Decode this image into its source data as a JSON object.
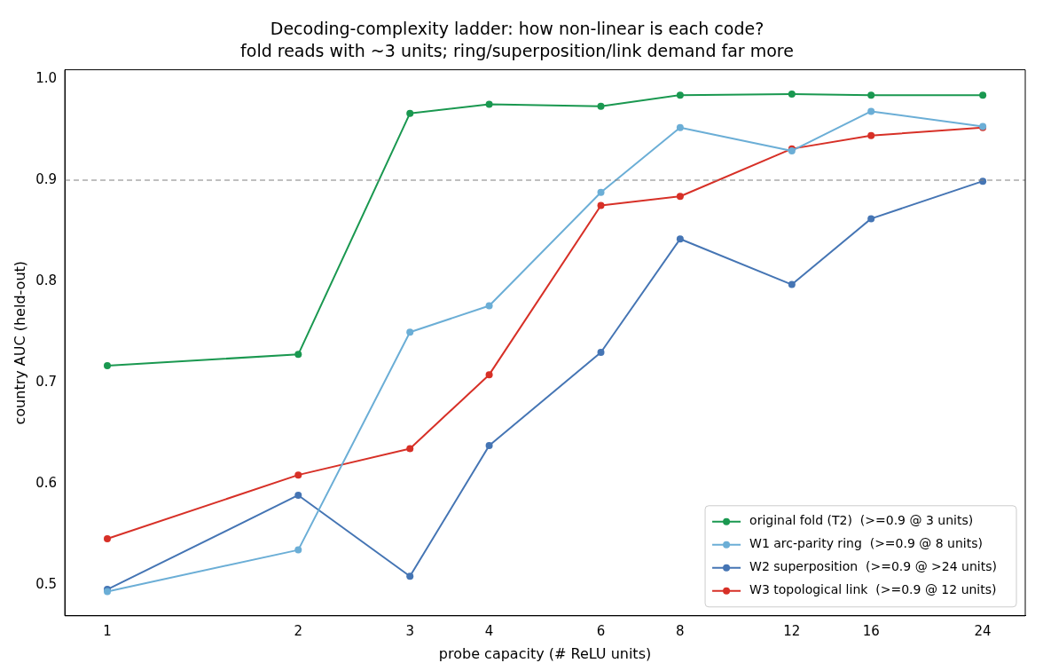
{
  "chart_data": {
    "type": "line",
    "title": "Decoding-complexity ladder: how non-linear is each code?",
    "subtitle": "fold reads with ~3 units; ring/superposition/link demand far more",
    "xlabel": "probe capacity (# ReLU units)",
    "ylabel": "country AUC (held-out)",
    "x": [
      1,
      2,
      3,
      4,
      6,
      8,
      12,
      16,
      24
    ],
    "series": [
      {
        "name": "original fold (T2)  (>=0.9 @ 3 units)",
        "color": "#1a9850",
        "values": [
          0.717,
          0.728,
          0.966,
          0.975,
          0.973,
          0.984,
          0.985,
          0.984,
          0.984
        ]
      },
      {
        "name": "W1 arc-parity ring  (>=0.9 @ 8 units)",
        "color": "#6baed6",
        "values": [
          0.494,
          0.535,
          0.75,
          0.776,
          0.888,
          0.952,
          0.929,
          0.968,
          0.953
        ]
      },
      {
        "name": "W2 superposition  (>=0.9 @ >24 units)",
        "color": "#4575b4",
        "values": [
          0.496,
          0.589,
          0.509,
          0.638,
          0.73,
          0.842,
          0.797,
          0.862,
          0.899
        ]
      },
      {
        "name": "W3 topological link  (>=0.9 @ 12 units)",
        "color": "#d73027",
        "values": [
          0.546,
          0.609,
          0.635,
          0.708,
          0.875,
          0.884,
          0.931,
          0.944,
          0.952
        ]
      }
    ],
    "log": "x",
    "xlim": [
      0.857,
      28
    ],
    "xticks": [
      1,
      2,
      3,
      4,
      6,
      8,
      12,
      16,
      24
    ],
    "ylim": [
      0.47,
      1.009
    ],
    "yticks": [
      {
        "value": 0.5,
        "label": "0.5"
      },
      {
        "value": 0.6,
        "label": "0.6"
      },
      {
        "value": 0.7,
        "label": "0.7"
      },
      {
        "value": 0.8,
        "label": "0.8"
      },
      {
        "value": 0.9,
        "label": "0.9"
      },
      {
        "value": 1.0,
        "label": "1.0"
      }
    ],
    "ref_lines": [
      {
        "axis": "y",
        "value": 0.9,
        "color": "#808080",
        "line_style": "dashed"
      }
    ],
    "grid": false,
    "legend": "bottom right",
    "marker": "circle",
    "line_style": "solid"
  }
}
